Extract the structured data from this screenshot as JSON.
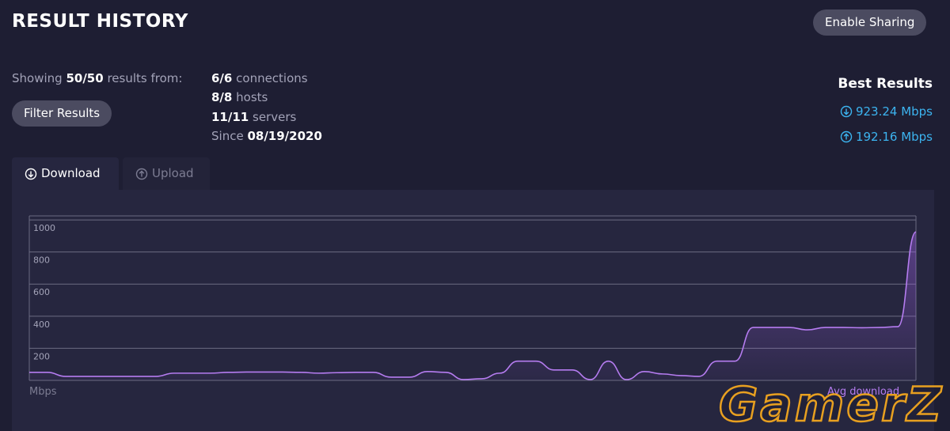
{
  "header": {
    "title": "RESULT HISTORY",
    "share_button": "Enable Sharing"
  },
  "summary": {
    "showing_prefix": "Showing",
    "showing_count": "50/50",
    "showing_suffix": "results from:",
    "filter_button": "Filter Results",
    "stats": [
      {
        "bold": "6/6",
        "text": "connections"
      },
      {
        "bold": "8/8",
        "text": "hosts"
      },
      {
        "bold": "11/11",
        "text": "servers"
      }
    ],
    "since": {
      "label": "Since",
      "date": "08/19/2020"
    }
  },
  "best_results": {
    "title": "Best Results",
    "download": "923.24 Mbps",
    "upload": "192.16 Mbps"
  },
  "tabs": [
    "Download",
    "Upload"
  ],
  "chart_data": {
    "type": "area",
    "y_label": "Mbps",
    "series": [
      {
        "name": "Avg download",
        "color": "#b57cf0",
        "values": [
          50,
          50,
          25,
          25,
          25,
          25,
          25,
          25,
          45,
          45,
          45,
          50,
          52,
          52,
          52,
          50,
          45,
          48,
          50,
          50,
          20,
          20,
          55,
          50,
          5,
          10,
          45,
          120,
          120,
          65,
          65,
          5,
          120,
          5,
          55,
          40,
          30,
          25,
          120,
          120,
          330,
          330,
          330,
          315,
          330,
          330,
          328,
          330,
          335,
          925
        ]
      }
    ],
    "ylim": [
      0,
      1025
    ],
    "yticks": [
      200,
      400,
      600,
      800,
      1000
    ],
    "grid": true
  },
  "watermark": "GamerZ"
}
